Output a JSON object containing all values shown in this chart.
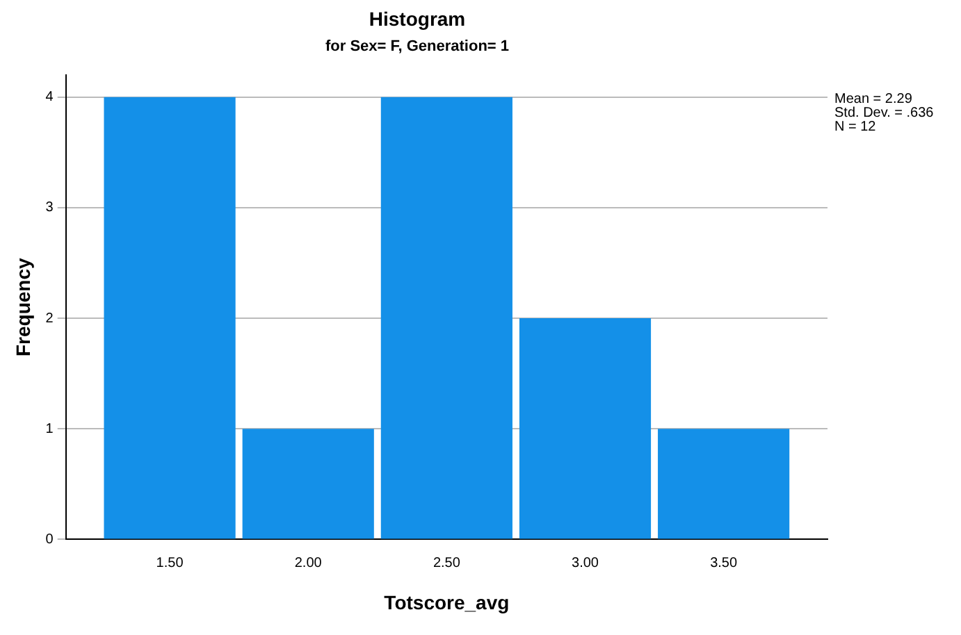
{
  "chart_data": {
    "type": "histogram",
    "title": "Histogram",
    "subtitle": "for Sex= F, Generation= 1",
    "xlabel": "Totscore_avg",
    "ylabel": "Frequency",
    "bins": [
      1.25,
      1.75,
      2.25,
      2.75,
      3.25,
      3.75
    ],
    "values": [
      4,
      1,
      4,
      2,
      1
    ],
    "color": "#1490e8",
    "xlim": [
      1.125,
      3.875
    ],
    "xticks": [
      {
        "value": 1.5,
        "label": "1.50"
      },
      {
        "value": 2,
        "label": "2.00"
      },
      {
        "value": 2.5,
        "label": "2.50"
      },
      {
        "value": 3,
        "label": "3.00"
      },
      {
        "value": 3.5,
        "label": "3.50"
      }
    ],
    "ylim": [
      0,
      4.2
    ],
    "yticks": [
      0,
      1,
      2,
      3,
      4
    ],
    "grid": "y",
    "annotations": [
      "Mean = 2.29",
      "Std. Dev. = .636",
      "N = 12"
    ]
  }
}
